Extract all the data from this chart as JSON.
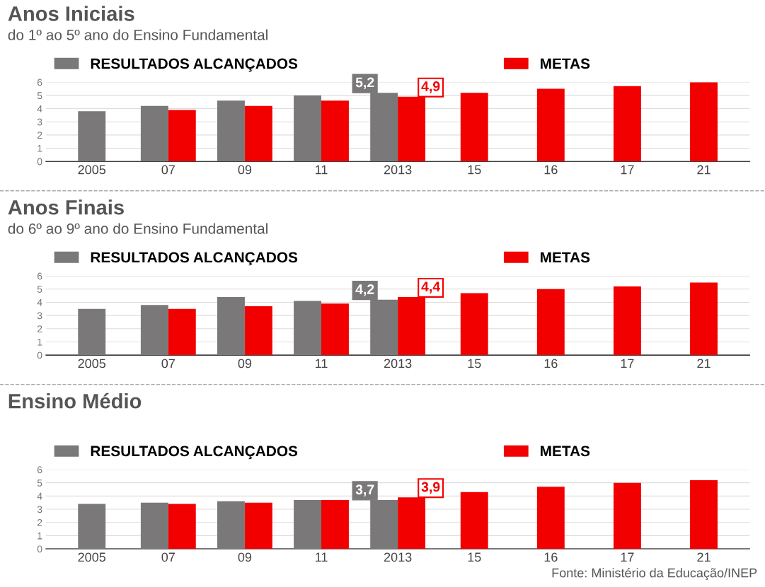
{
  "chart_data": [
    {
      "type": "bar",
      "title": "Anos Iniciais",
      "subtitle": "do 1º ao 5º ano do Ensino Fundamental",
      "categories": [
        "2005",
        "07",
        "09",
        "11",
        "2013",
        "15",
        "16",
        "17",
        "21"
      ],
      "series": [
        {
          "name": "RESULTADOS ALCANÇADOS",
          "color": "#7a7879",
          "values": [
            3.8,
            4.2,
            4.6,
            5.0,
            5.2,
            null,
            null,
            null,
            null
          ]
        },
        {
          "name": "METAS",
          "color": "#f20000",
          "values": [
            null,
            3.9,
            4.2,
            4.6,
            4.9,
            5.2,
            5.5,
            5.7,
            6.0
          ]
        }
      ],
      "ylim": [
        0,
        6
      ],
      "yticks": [
        0,
        1,
        2,
        3,
        4,
        5,
        6
      ],
      "grid": "y",
      "legend": "top",
      "annotations": [
        {
          "text": "5,2",
          "x": "2013",
          "y": 5.2
        },
        {
          "text": "4,9",
          "x": "2013",
          "y": 4.9
        }
      ]
    },
    {
      "type": "bar",
      "title": "Anos Finais",
      "subtitle": "do 6º ao 9º ano do Ensino Fundamental",
      "categories": [
        "2005",
        "07",
        "09",
        "11",
        "2013",
        "15",
        "16",
        "17",
        "21"
      ],
      "series": [
        {
          "name": "RESULTADOS ALCANÇADOS",
          "color": "#7a7879",
          "values": [
            3.5,
            3.8,
            4.4,
            4.1,
            4.2,
            null,
            null,
            null,
            null
          ]
        },
        {
          "name": "METAS",
          "color": "#f20000",
          "values": [
            null,
            3.5,
            3.7,
            3.9,
            4.4,
            4.7,
            5.0,
            5.2,
            5.5
          ]
        }
      ],
      "ylim": [
        0,
        6
      ],
      "yticks": [
        0,
        1,
        2,
        3,
        4,
        5,
        6
      ],
      "grid": "y",
      "legend": "top",
      "annotations": [
        {
          "text": "4,2",
          "x": "2013",
          "y": 4.2
        },
        {
          "text": "4,4",
          "x": "2013",
          "y": 4.4
        }
      ]
    },
    {
      "type": "bar",
      "title": "Ensino Médio",
      "categories": [
        "2005",
        "07",
        "09",
        "11",
        "2013",
        "15",
        "16",
        "17",
        "21"
      ],
      "series": [
        {
          "name": "RESULTADOS ALCANÇADOS",
          "color": "#7a7879",
          "values": [
            3.4,
            3.5,
            3.6,
            3.7,
            3.7,
            null,
            null,
            null,
            null
          ]
        },
        {
          "name": "METAS",
          "color": "#f20000",
          "values": [
            null,
            3.4,
            3.5,
            3.7,
            3.9,
            4.3,
            4.7,
            5.0,
            5.2
          ]
        }
      ],
      "ylim": [
        0,
        6
      ],
      "yticks": [
        0,
        1,
        2,
        3,
        4,
        5,
        6
      ],
      "grid": "y",
      "legend": "top",
      "annotations": [
        {
          "text": "3,7",
          "x": "2013",
          "y": 3.7
        },
        {
          "text": "3,9",
          "x": "2013",
          "y": 3.9
        },
        "Fonte: Ministério da Educação/INEP"
      ]
    }
  ]
}
